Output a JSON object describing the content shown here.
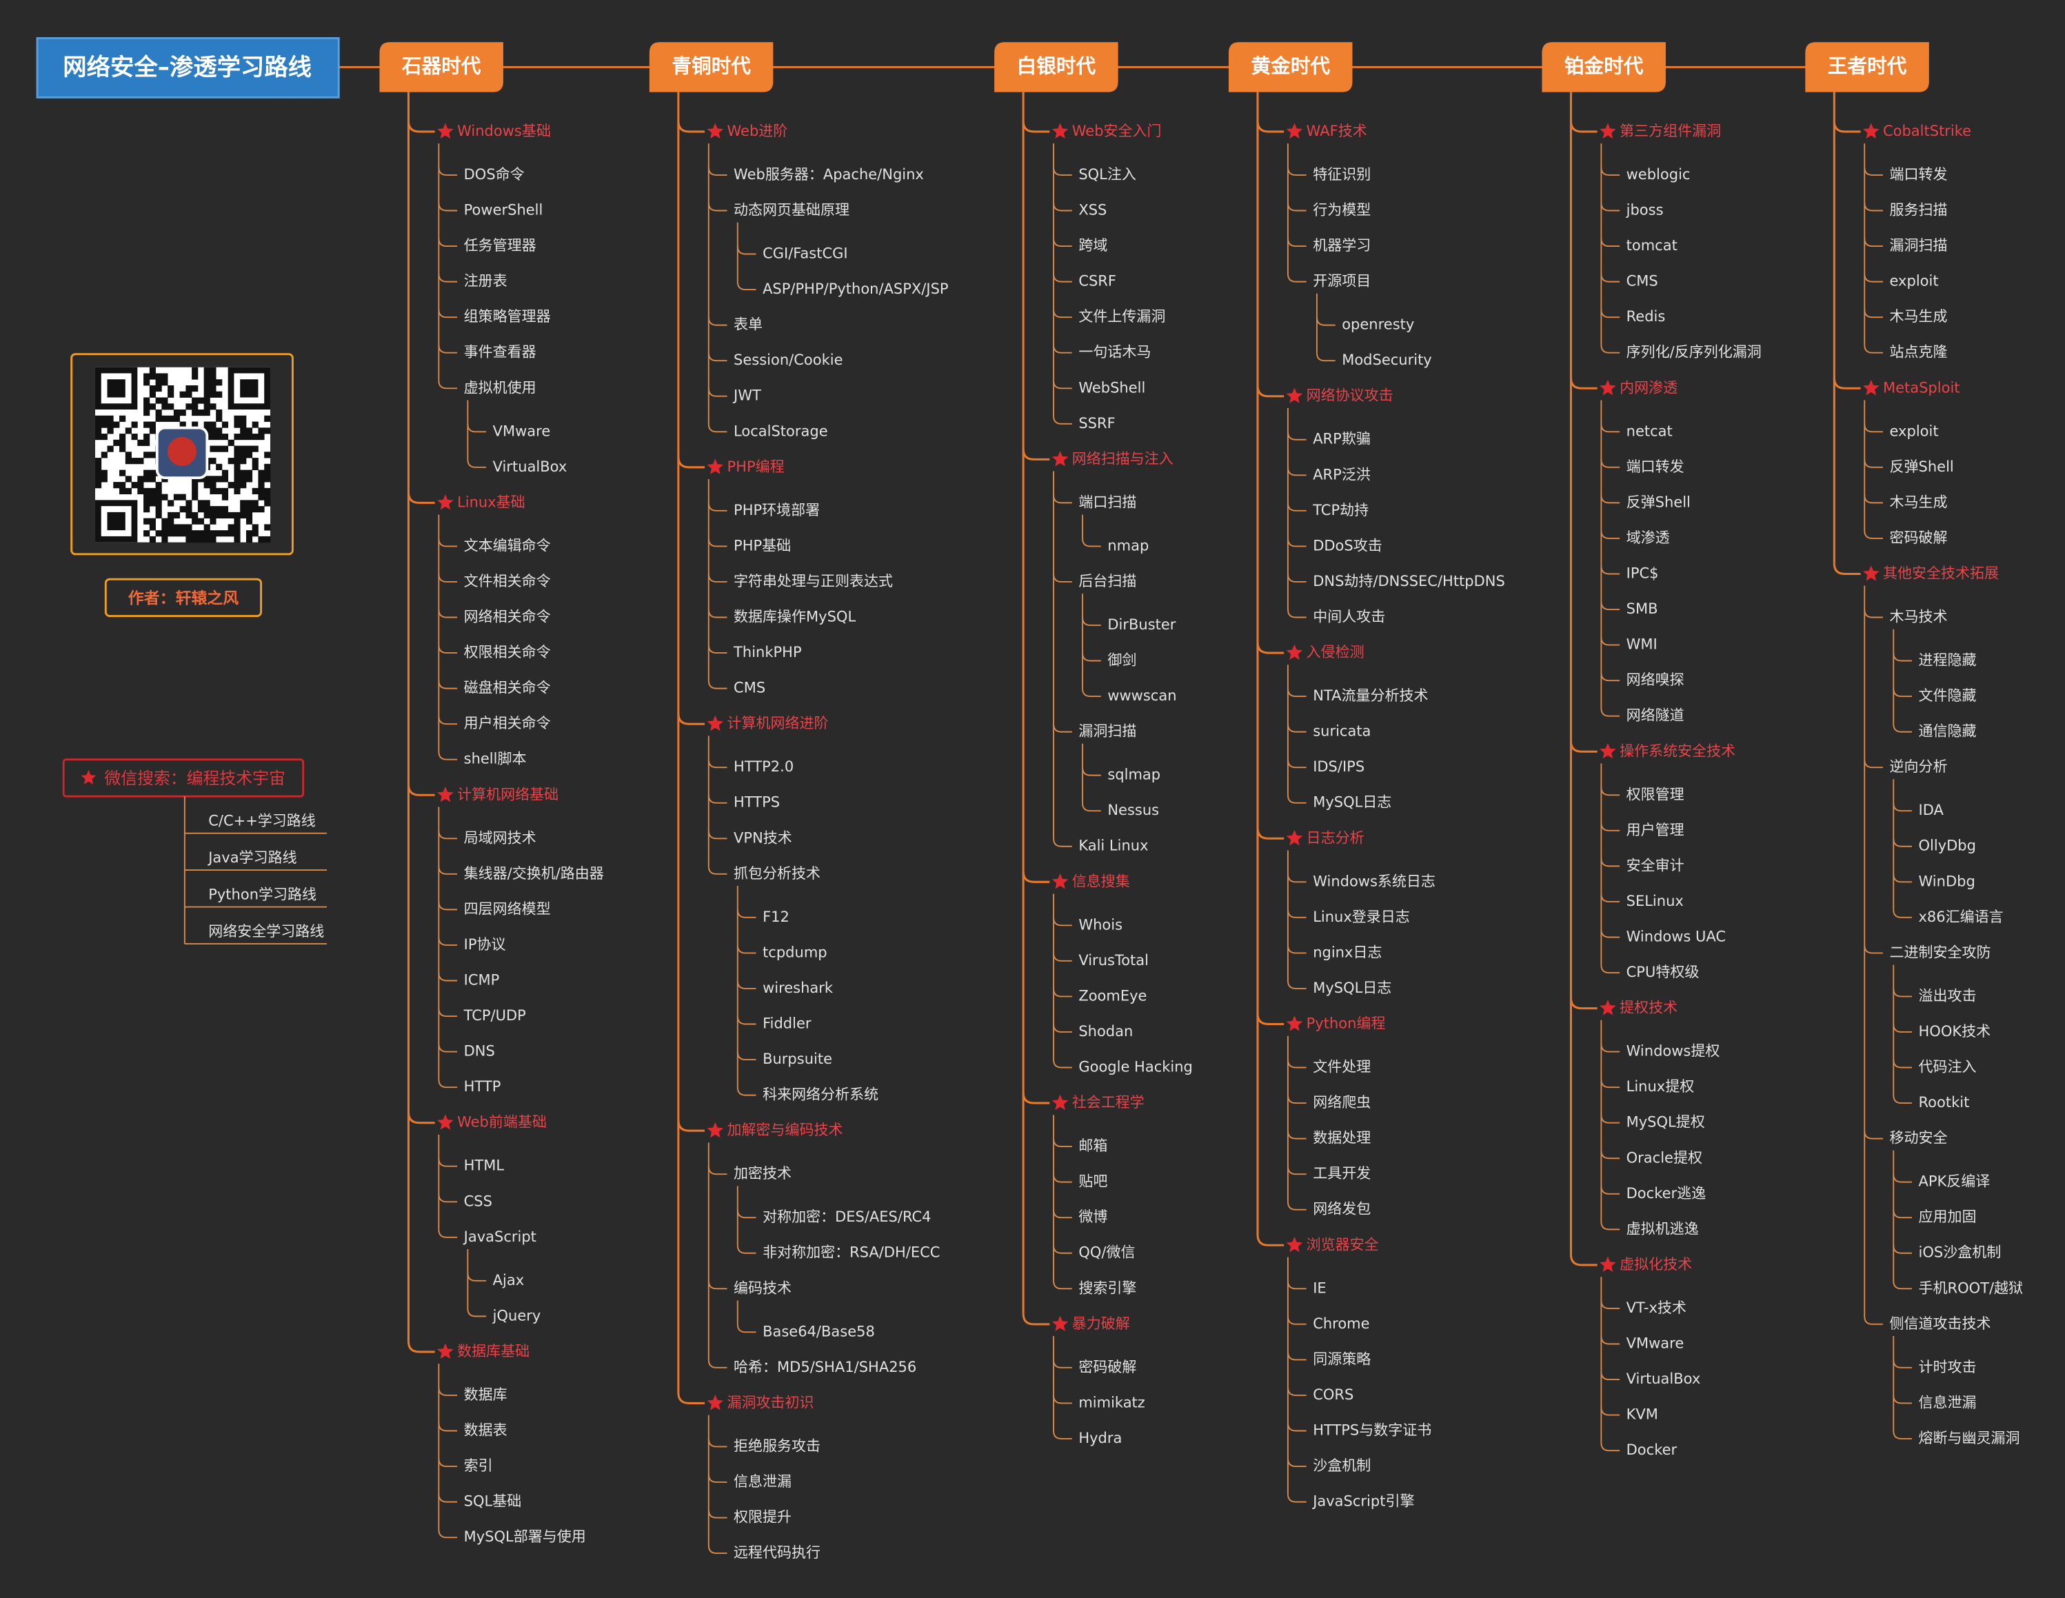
{
  "title": "网络安全–渗透学习路线",
  "author": "作者：轩辕之风",
  "wechat_search": "微信搜索：编程技术宇宙",
  "routes": [
    "C/C++学习路线",
    "Java学习路线",
    "Python学习路线",
    "网络安全学习路线"
  ],
  "eras": [
    {
      "name": "石器时代",
      "topics": [
        {
          "name": "Windows基础",
          "items": [
            "DOS命令",
            "PowerShell",
            "任务管理器",
            "注册表",
            "组策略管理器",
            "事件查看器",
            {
              "label": "虚拟机使用",
              "children": [
                "VMware",
                "VirtualBox"
              ]
            }
          ]
        },
        {
          "name": "Linux基础",
          "items": [
            "文本编辑命令",
            "文件相关命令",
            "网络相关命令",
            "权限相关命令",
            "磁盘相关命令",
            "用户相关命令",
            "shell脚本"
          ]
        },
        {
          "name": "计算机网络基础",
          "items": [
            "局域网技术",
            "集线器/交换机/路由器",
            "四层网络模型",
            "IP协议",
            "ICMP",
            "TCP/UDP",
            "DNS",
            "HTTP"
          ]
        },
        {
          "name": "Web前端基础",
          "items": [
            "HTML",
            "CSS",
            {
              "label": "JavaScript",
              "children": [
                "Ajax",
                "jQuery"
              ]
            }
          ]
        },
        {
          "name": "数据库基础",
          "items": [
            "数据库",
            "数据表",
            "索引",
            "SQL基础",
            "MySQL部署与使用"
          ]
        }
      ]
    },
    {
      "name": "青铜时代",
      "topics": [
        {
          "name": "Web进阶",
          "items": [
            "Web服务器：Apache/Nginx",
            {
              "label": "动态网页基础原理",
              "children": [
                "CGI/FastCGI",
                "ASP/PHP/Python/ASPX/JSP"
              ]
            },
            "表单",
            "Session/Cookie",
            "JWT",
            "LocalStorage"
          ]
        },
        {
          "name": "PHP编程",
          "items": [
            "PHP环境部署",
            "PHP基础",
            "字符串处理与正则表达式",
            "数据库操作MySQL",
            "ThinkPHP",
            "CMS"
          ]
        },
        {
          "name": "计算机网络进阶",
          "items": [
            "HTTP2.0",
            "HTTPS",
            "VPN技术",
            {
              "label": "抓包分析技术",
              "children": [
                "F12",
                "tcpdump",
                "wireshark",
                "Fiddler",
                "Burpsuite",
                "科来网络分析系统"
              ]
            }
          ]
        },
        {
          "name": "加解密与编码技术",
          "items": [
            {
              "label": "加密技术",
              "children": [
                "对称加密：DES/AES/RC4",
                "非对称加密：RSA/DH/ECC"
              ]
            },
            {
              "label": "编码技术",
              "children": [
                "Base64/Base58"
              ]
            },
            "哈希：MD5/SHA1/SHA256"
          ]
        },
        {
          "name": "漏洞攻击初识",
          "items": [
            "拒绝服务攻击",
            "信息泄漏",
            "权限提升",
            "远程代码执行"
          ]
        }
      ]
    },
    {
      "name": "白银时代",
      "topics": [
        {
          "name": "Web安全入门",
          "items": [
            "SQL注入",
            "XSS",
            "跨域",
            "CSRF",
            "文件上传漏洞",
            "一句话木马",
            "WebShell",
            "SSRF"
          ]
        },
        {
          "name": "网络扫描与注入",
          "items": [
            {
              "label": "端口扫描",
              "children": [
                "nmap"
              ]
            },
            {
              "label": "后台扫描",
              "children": [
                "DirBuster",
                "御剑",
                "wwwscan"
              ]
            },
            {
              "label": "漏洞扫描",
              "children": [
                "sqlmap",
                "Nessus"
              ]
            },
            "Kali Linux"
          ]
        },
        {
          "name": "信息搜集",
          "items": [
            "Whois",
            "VirusTotal",
            "ZoomEye",
            "Shodan",
            "Google Hacking"
          ]
        },
        {
          "name": "社会工程学",
          "items": [
            "邮箱",
            "贴吧",
            "微博",
            "QQ/微信",
            "搜索引擎"
          ]
        },
        {
          "name": "暴力破解",
          "items": [
            "密码破解",
            "mimikatz",
            "Hydra"
          ]
        }
      ]
    },
    {
      "name": "黄金时代",
      "topics": [
        {
          "name": "WAF技术",
          "items": [
            "特征识别",
            "行为模型",
            "机器学习",
            {
              "label": "开源项目",
              "children": [
                "openresty",
                "ModSecurity"
              ]
            }
          ]
        },
        {
          "name": "网络协议攻击",
          "items": [
            "ARP欺骗",
            "ARP泛洪",
            "TCP劫持",
            "DDoS攻击",
            "DNS劫持/DNSSEC/HttpDNS",
            "中间人攻击"
          ]
        },
        {
          "name": "入侵检测",
          "items": [
            "NTA流量分析技术",
            "suricata",
            "IDS/IPS",
            "MySQL日志"
          ]
        },
        {
          "name": "日志分析",
          "items": [
            "Windows系统日志",
            "Linux登录日志",
            "nginx日志",
            "MySQL日志"
          ]
        },
        {
          "name": "Python编程",
          "items": [
            "文件处理",
            "网络爬虫",
            "数据处理",
            "工具开发",
            "网络发包"
          ]
        },
        {
          "name": "浏览器安全",
          "items": [
            "IE",
            "Chrome",
            "同源策略",
            "CORS",
            "HTTPS与数字证书",
            "沙盒机制",
            "JavaScript引擎"
          ]
        }
      ]
    },
    {
      "name": "铂金时代",
      "topics": [
        {
          "name": "第三方组件漏洞",
          "items": [
            "weblogic",
            "jboss",
            "tomcat",
            "CMS",
            "Redis",
            "序列化/反序列化漏洞"
          ]
        },
        {
          "name": "内网渗透",
          "items": [
            "netcat",
            "端口转发",
            "反弹Shell",
            "域渗透",
            "IPC$",
            "SMB",
            "WMI",
            "网络嗅探",
            "网络隧道"
          ]
        },
        {
          "name": "操作系统安全技术",
          "items": [
            "权限管理",
            "用户管理",
            "安全审计",
            "SELinux",
            "Windows UAC",
            "CPU特权级"
          ]
        },
        {
          "name": "提权技术",
          "items": [
            "Windows提权",
            "Linux提权",
            "MySQL提权",
            "Oracle提权",
            "Docker逃逸",
            "虚拟机逃逸"
          ]
        },
        {
          "name": "虚拟化技术",
          "items": [
            "VT-x技术",
            "VMware",
            "VirtualBox",
            "KVM",
            "Docker"
          ]
        }
      ]
    },
    {
      "name": "王者时代",
      "topics": [
        {
          "name": "CobaltStrike",
          "items": [
            "端口转发",
            "服务扫描",
            "漏洞扫描",
            "exploit",
            "木马生成",
            "站点克隆"
          ]
        },
        {
          "name": "MetaSploit",
          "items": [
            "exploit",
            "反弹Shell",
            "木马生成",
            "密码破解"
          ]
        },
        {
          "name": "其他安全技术拓展",
          "items": [
            {
              "label": "木马技术",
              "children": [
                "进程隐藏",
                "文件隐藏",
                "通信隐藏"
              ]
            },
            {
              "label": "逆向分析",
              "children": [
                "IDA",
                "OllyDbg",
                "WinDbg",
                "x86汇编语言"
              ]
            },
            {
              "label": "二进制安全攻防",
              "children": [
                "溢出攻击",
                "HOOK技术",
                "代码注入",
                "Rootkit"
              ]
            },
            {
              "label": "移动安全",
              "children": [
                "APK反编译",
                "应用加固",
                "iOS沙盒机制",
                "手机ROOT/越狱"
              ]
            },
            {
              "label": "侧信道攻击技术",
              "children": [
                "计时攻击",
                "信息泄漏",
                "熔断与幽灵漏洞"
              ]
            }
          ]
        }
      ]
    }
  ]
}
